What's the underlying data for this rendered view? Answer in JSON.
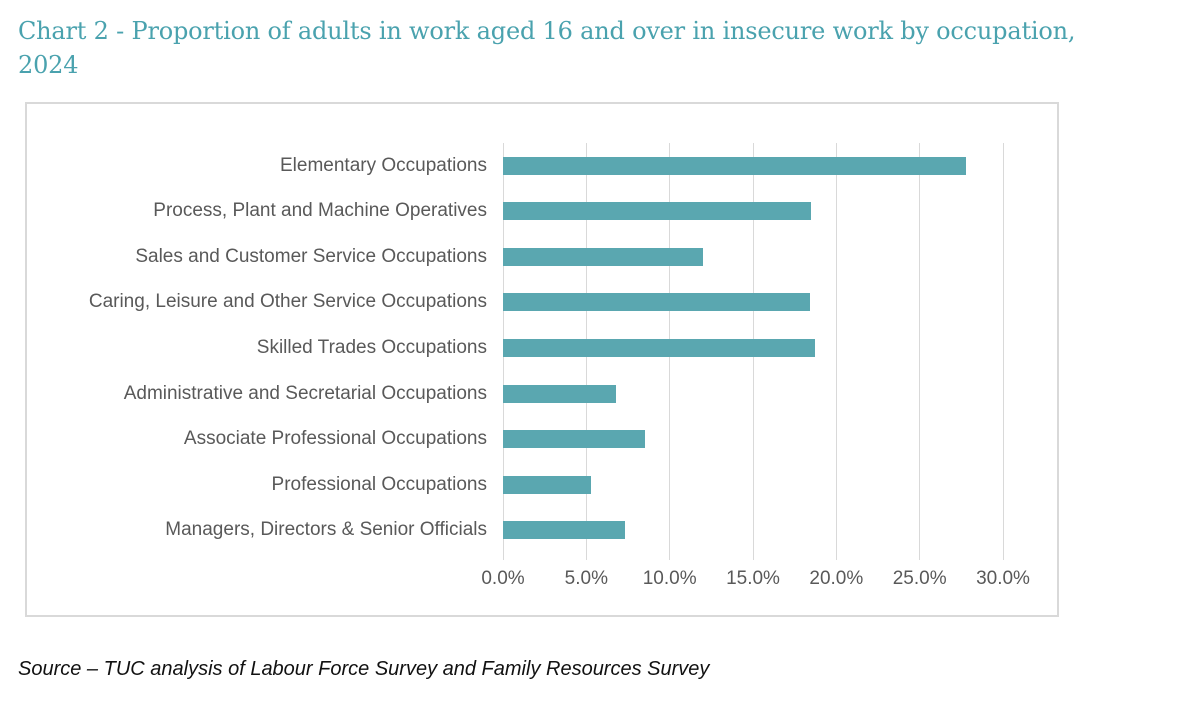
{
  "header": {
    "title_line1": "Chart 2 - Proportion of adults in work aged 16 and over in insecure work by occupation,",
    "title_line2": "2024",
    "title_color": "#4aa2ae"
  },
  "footer": {
    "source_note": "Source – TUC analysis of Labour Force Survey and Family Resources Survey"
  },
  "chart_data": {
    "type": "bar",
    "orientation": "horizontal",
    "title": "Chart 2 - Proportion of adults in work aged 16 and over in insecure work by occupation, 2024",
    "categories": [
      "Elementary Occupations",
      "Process, Plant and Machine Operatives",
      "Sales and Customer Service Occupations",
      "Caring, Leisure and Other Service Occupations",
      "Skilled Trades Occupations",
      "Administrative and Secretarial Occupations",
      "Associate Professional Occupations",
      "Professional Occupations",
      "Managers, Directors & Senior Officials"
    ],
    "values": [
      27.8,
      18.5,
      12.0,
      18.4,
      18.7,
      6.8,
      8.5,
      5.3,
      7.3
    ],
    "unit": "%",
    "x_tick_labels": [
      "0.0%",
      "5.0%",
      "10.0%",
      "15.0%",
      "20.0%",
      "25.0%",
      "30.0%"
    ],
    "x_tick_values": [
      0,
      5,
      10,
      15,
      20,
      25,
      30
    ],
    "xlim": [
      0,
      30
    ],
    "grid": true,
    "legend": false,
    "bar_color": "#5aa7b0",
    "grid_color": "#d9d9d9",
    "label_color": "#595959"
  }
}
